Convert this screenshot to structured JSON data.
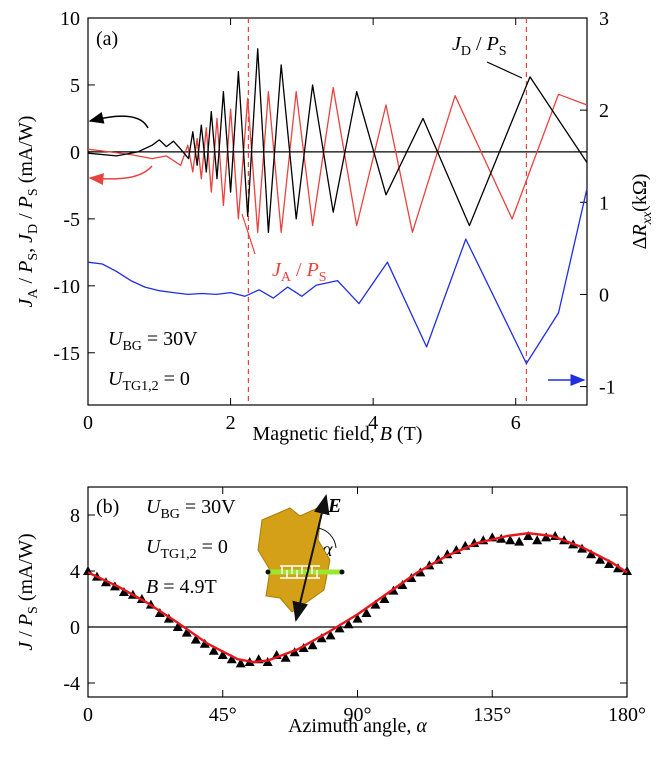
{
  "chart_data": [
    {
      "type": "line",
      "panel_label": "(a)",
      "xlabel": [
        "Magnetic field, ",
        {
          "i": "B"
        },
        " (T)"
      ],
      "ylabel": [
        {
          "i": "J"
        },
        {
          "sub": "A"
        },
        " / ",
        {
          "i": "P"
        },
        {
          "sub": "S"
        },
        ",  ",
        {
          "i": "J"
        },
        {
          "sub": "D"
        },
        " / ",
        {
          "i": "P"
        },
        {
          "sub": "S"
        },
        " (mA/W)"
      ],
      "y2label": [
        "Δ",
        {
          "i": "R"
        },
        {
          "isub": "xx"
        },
        "(kΩ)"
      ],
      "xlim": [
        0,
        7
      ],
      "xticks": [
        0,
        2,
        4,
        6
      ],
      "ylim": [
        -18.9,
        10
      ],
      "yticks": [
        -15,
        -10,
        -5,
        0,
        5,
        10
      ],
      "y2lim": [
        -1.2,
        3
      ],
      "y2ticks": [
        -1,
        0,
        1,
        2,
        3
      ],
      "hline": 0,
      "vlines": [
        2.25,
        6.15
      ],
      "vline_color": "#e8433f",
      "annotations": [
        {
          "runs": [
            {
              "i": "J"
            },
            {
              "sub": "D"
            },
            " / ",
            {
              "i": "P"
            },
            {
              "sub": "S"
            }
          ],
          "color": "#000000"
        },
        {
          "runs": [
            {
              "i": "J"
            },
            {
              "sub": "A"
            },
            " / ",
            {
              "i": "P"
            },
            {
              "sub": "S"
            }
          ],
          "color": "#e8433f"
        },
        {
          "runs": [
            {
              "i": "U"
            },
            {
              "sub": "BG"
            },
            " = 30V"
          ],
          "color": "#000000"
        },
        {
          "runs": [
            {
              "i": "U"
            },
            {
              "sub": "TG1,2"
            },
            " = 0"
          ],
          "color": "#000000"
        }
      ],
      "series": [
        {
          "color": "#e8433f",
          "x": [
            0,
            0.3,
            0.6,
            0.9,
            1.1,
            1.3,
            1.4,
            1.47,
            1.53,
            1.59,
            1.66,
            1.73,
            1.81,
            1.9,
            2.0,
            2.11,
            2.24,
            2.38,
            2.53,
            2.71,
            2.92,
            3.15,
            3.44,
            3.77,
            4.18,
            4.55,
            5.15,
            5.95,
            6.6,
            7
          ],
          "values": [
            0.2,
            0,
            -0.2,
            -0.5,
            -0.3,
            -1,
            0.5,
            -1.5,
            1,
            -2,
            1.8,
            -3,
            2.5,
            -4,
            3.2,
            -5,
            4,
            -6,
            4.5,
            -6,
            4.5,
            -5.5,
            4.8,
            -5.5,
            3.5,
            -6,
            4.2,
            -5,
            4.3,
            3.5
          ]
        },
        {
          "color": "#000000",
          "x": [
            0,
            0.4,
            0.7,
            0.9,
            1.0,
            1.1,
            1.2,
            1.3,
            1.41,
            1.47,
            1.53,
            1.59,
            1.66,
            1.73,
            1.81,
            1.9,
            2.0,
            2.11,
            2.24,
            2.38,
            2.53,
            2.71,
            2.92,
            3.15,
            3.44,
            3.77,
            4.18,
            4.7,
            5.35,
            6.2,
            6.9,
            7
          ],
          "values": [
            -0.1,
            -0.3,
            0,
            0.5,
            0.9,
            0.4,
            0.8,
            0.2,
            -0.5,
            1.5,
            -1,
            2,
            -1.5,
            3,
            -2,
            4.5,
            -3,
            6,
            -4.8,
            7.7,
            -6,
            6.5,
            -5,
            5,
            -4.5,
            4.5,
            -3.2,
            2.5,
            -5.5,
            5.6,
            0,
            -0.8
          ]
        },
        {
          "color": "#1f2fe0",
          "axis": "y2",
          "x": [
            0,
            0.2,
            0.4,
            0.6,
            0.8,
            1.0,
            1.2,
            1.4,
            1.6,
            1.8,
            2.0,
            2.2,
            2.4,
            2.6,
            2.8,
            3.0,
            3.2,
            3.5,
            3.8,
            4.2,
            4.75,
            5.3,
            6.15,
            6.6,
            7
          ],
          "values": [
            0.35,
            0.33,
            0.25,
            0.15,
            0.08,
            0.04,
            0.02,
            0,
            0.01,
            0,
            0.02,
            -0.02,
            0.05,
            -0.04,
            0.08,
            -0.02,
            0.1,
            0.15,
            -0.1,
            0.35,
            -0.57,
            0.6,
            -0.75,
            -0.2,
            1.15
          ]
        }
      ]
    },
    {
      "type": "scatter",
      "panel_label": "(b)",
      "xlabel": [
        "Azimuth angle, ",
        {
          "i": "α"
        }
      ],
      "ylabel": [
        {
          "i": "J"
        },
        " / ",
        {
          "i": "P"
        },
        {
          "sub": "S"
        },
        " (mA/W)"
      ],
      "xlim": [
        0,
        180
      ],
      "xticks": [
        0,
        {
          "value": 45,
          "label": "45°"
        },
        {
          "value": 90,
          "label": "90°"
        },
        {
          "value": 135,
          "label": "135°"
        },
        {
          "value": 180,
          "label": "180°"
        }
      ],
      "ylim": [
        -5,
        10
      ],
      "yticks": [
        -4,
        0,
        4,
        8
      ],
      "hline": 0,
      "inset_labels": [
        {
          "i": "E"
        },
        {
          "i": "α"
        }
      ],
      "annotations": [
        {
          "runs": [
            {
              "i": "U"
            },
            {
              "sub": "BG"
            },
            " = 30V"
          ],
          "color": "#000000"
        },
        {
          "runs": [
            {
              "i": "U"
            },
            {
              "sub": "TG1,2"
            },
            " = 0"
          ],
          "color": "#000000"
        },
        {
          "runs": [
            {
              "i": "B"
            },
            " = 4.9T"
          ],
          "color": "#000000"
        }
      ],
      "series": [
        {
          "color": "#000000",
          "marker": "triangle",
          "x": [
            0,
            3,
            6,
            9,
            12,
            15,
            18,
            21,
            24,
            27,
            30,
            33,
            36,
            39,
            42,
            45,
            48,
            51,
            54,
            57,
            60,
            63,
            66,
            69,
            72,
            75,
            78,
            81,
            84,
            87,
            90,
            93,
            96,
            99,
            102,
            105,
            108,
            111,
            114,
            117,
            120,
            123,
            126,
            129,
            132,
            135,
            138,
            141,
            144,
            147,
            150,
            153,
            156,
            159,
            162,
            165,
            168,
            171,
            174,
            177,
            180
          ],
          "values": [
            4.0,
            3.6,
            3.2,
            2.9,
            2.5,
            2.3,
            2.0,
            1.6,
            1.0,
            0.6,
            0.0,
            -0.4,
            -0.9,
            -1.2,
            -1.7,
            -2.0,
            -2.3,
            -2.6,
            -2.5,
            -2.3,
            -2.5,
            -2.0,
            -2.2,
            -1.8,
            -1.5,
            -1.3,
            -0.8,
            -0.6,
            -0.1,
            0.2,
            0.6,
            1.0,
            1.6,
            2.0,
            2.6,
            3.0,
            3.5,
            3.9,
            4.4,
            4.8,
            5.2,
            5.5,
            5.8,
            6.0,
            6.2,
            6.4,
            6.3,
            6.2,
            6.1,
            6.5,
            6.2,
            6.4,
            6.5,
            6.2,
            5.9,
            5.6,
            5.2,
            4.8,
            4.5,
            4.2,
            4.0
          ]
        },
        {
          "color": "#e8151a",
          "marker": "line",
          "x": [
            0,
            10,
            20,
            30,
            40,
            50,
            55,
            60,
            70,
            80,
            90,
            100,
            110,
            120,
            130,
            140,
            147,
            155,
            165,
            175,
            180
          ],
          "values": [
            3.9,
            2.9,
            1.7,
            0.3,
            -1.2,
            -2.3,
            -2.5,
            -2.4,
            -1.6,
            -0.4,
            0.9,
            2.4,
            3.9,
            5.1,
            6.0,
            6.5,
            6.7,
            6.5,
            5.7,
            4.6,
            3.9
          ]
        }
      ]
    }
  ]
}
